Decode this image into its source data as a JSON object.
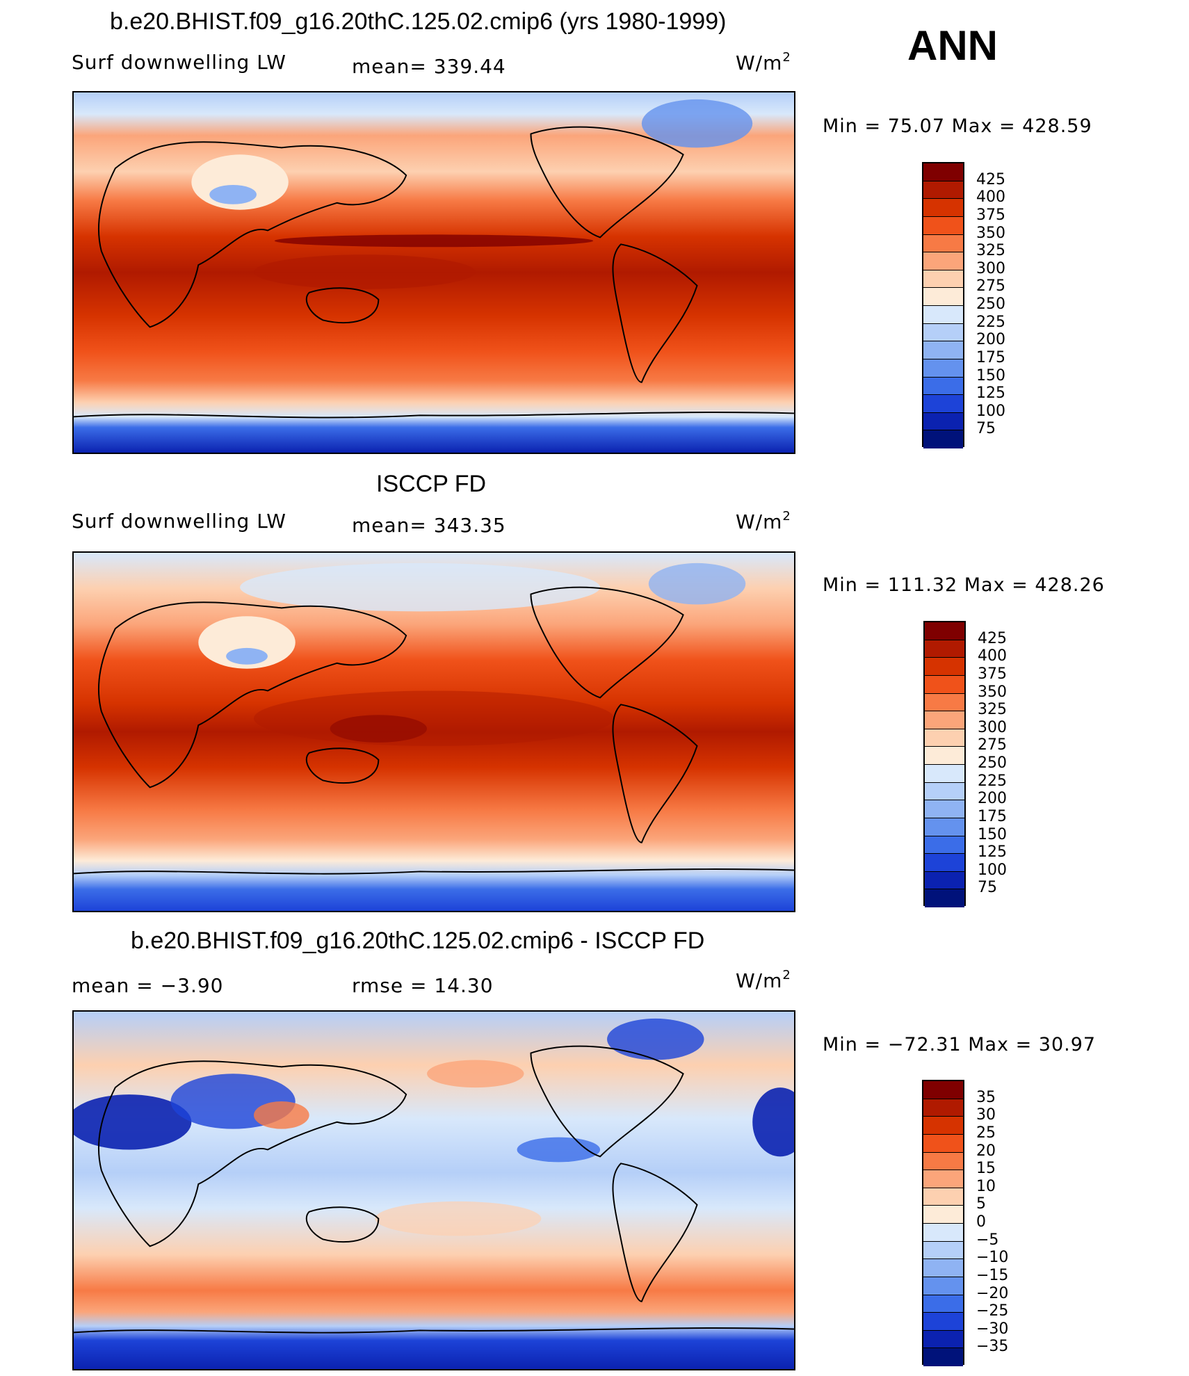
{
  "season": "ANN",
  "units": "W/m",
  "units_sup": "2",
  "panels": [
    {
      "title": "b.e20.BHIST.f09_g16.20thC.125.02.cmip6 (yrs 1980-1999)",
      "variable": "Surf  downwelling LW",
      "stat1": "mean=  339.44",
      "stat2": "",
      "minmax": "Min  =    75.07  Max  =  428.59",
      "colorbar_labels": [
        "425",
        "400",
        "375",
        "350",
        "325",
        "300",
        "275",
        "250",
        "225",
        "200",
        "175",
        "150",
        "125",
        "100",
        "75"
      ]
    },
    {
      "title": "ISCCP FD",
      "variable": "Surf  downwelling LW",
      "stat1": "mean=  343.35",
      "stat2": "",
      "minmax": "Min  =  111.32  Max  =  428.26",
      "colorbar_labels": [
        "425",
        "400",
        "375",
        "350",
        "325",
        "300",
        "275",
        "250",
        "225",
        "200",
        "175",
        "150",
        "125",
        "100",
        "75"
      ]
    },
    {
      "title": "b.e20.BHIST.f09_g16.20thC.125.02.cmip6 - ISCCP FD",
      "variable": "",
      "stat1": "mean  =    −3.90",
      "stat2": "rmse  =    14.30",
      "minmax": "Min  =  −72.31  Max  =    30.97",
      "colorbar_labels": [
        "35",
        "30",
        "25",
        "20",
        "15",
        "10",
        "5",
        "0",
        "−5",
        "−10",
        "−15",
        "−20",
        "−25",
        "−30",
        "−35"
      ]
    }
  ],
  "colors": {
    "bar_top_to_bottom": [
      "#7f0000",
      "#b01a00",
      "#d63300",
      "#f0521a",
      "#f77a45",
      "#fba57a",
      "#fdd0b0",
      "#fdebd8",
      "#d8e8fb",
      "#b5cff8",
      "#8fb3f3",
      "#6492ee",
      "#3b6de8",
      "#1d43d8",
      "#0b22b0",
      "#00127a"
    ]
  }
}
